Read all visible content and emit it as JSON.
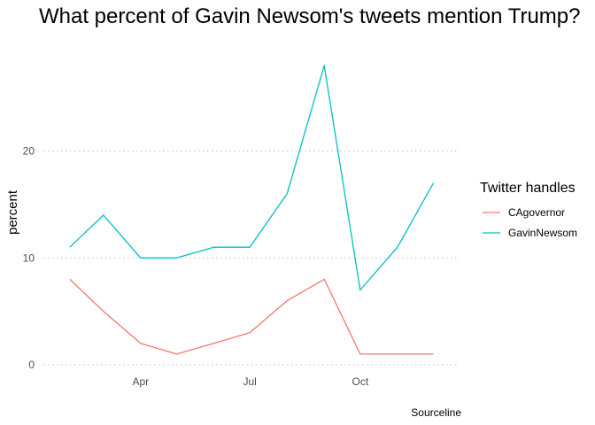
{
  "chart_data": {
    "type": "line",
    "title": "What percent of Gavin Newsom's tweets mention Trump?",
    "ylabel": "percent",
    "xlabel": "",
    "caption": "Sourceline",
    "x": [
      "2019-02-01",
      "2019-03-01",
      "2019-04-01",
      "2019-05-01",
      "2019-06-01",
      "2019-07-01",
      "2019-08-01",
      "2019-09-01",
      "2019-10-01",
      "2019-11-01",
      "2019-12-01"
    ],
    "x_ticks": [
      {
        "date": "2019-04-01",
        "label": "Apr"
      },
      {
        "date": "2019-07-01",
        "label": "Jul"
      },
      {
        "date": "2019-10-01",
        "label": "Oct"
      }
    ],
    "xlim": [
      "2019-01-10",
      "2019-12-22"
    ],
    "ylim": [
      -0.5,
      29.5
    ],
    "y_ticks": [
      0,
      10,
      20
    ],
    "grid": "horizontal dotted",
    "legend": {
      "title": "Twitter handles",
      "position": "right"
    },
    "series": [
      {
        "name": "CAgovernor",
        "color": "#F8766D",
        "values": [
          8,
          5,
          2,
          1,
          2,
          3,
          6,
          8,
          1,
          1,
          1
        ]
      },
      {
        "name": "GavinNewsom",
        "color": "#00BFC4",
        "values": [
          11,
          14,
          10,
          10,
          11,
          11,
          16,
          28,
          7,
          11,
          17
        ]
      }
    ]
  }
}
